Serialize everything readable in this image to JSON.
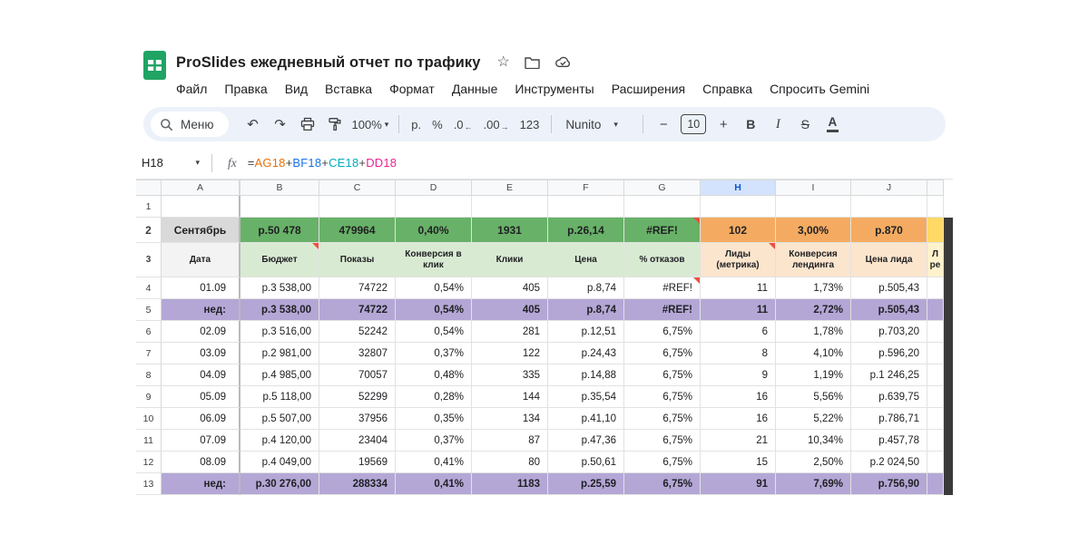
{
  "titlebar": {
    "title": "ProSlides ежедневный отчет по трафику"
  },
  "menubar": {
    "items": [
      "Файл",
      "Правка",
      "Вид",
      "Вставка",
      "Формат",
      "Данные",
      "Инструменты",
      "Расширения",
      "Справка",
      "Спросить Gemini"
    ]
  },
  "toolbar": {
    "menu_search_label": "Меню",
    "zoom_value": "100%",
    "currency_label": "р.",
    "percent_label": "%",
    "decimal_decrease": ".0",
    "decimal_increase": ".00",
    "more_formats": "123",
    "font_name": "Nunito",
    "font_size": "10",
    "bold_label": "B",
    "italic_label": "I",
    "strikethrough_label": "S",
    "text_color_label": "A"
  },
  "icons": {
    "caret_down": "▾",
    "undo": "↶",
    "redo": "↷",
    "star": "☆",
    "arrow_left": "←",
    "arrow_right": "→",
    "minus": "−",
    "plus": "+"
  },
  "formula_bar": {
    "name_box": "H18",
    "fx_label": "fx",
    "formula": [
      {
        "t": "=",
        "c": "#444746"
      },
      {
        "t": "AG18",
        "c": "#e8710a"
      },
      {
        "t": "+",
        "c": "#444746"
      },
      {
        "t": "BF18",
        "c": "#1a73e8"
      },
      {
        "t": "+",
        "c": "#444746"
      },
      {
        "t": "CE18",
        "c": "#00acc1"
      },
      {
        "t": "+",
        "c": "#444746"
      },
      {
        "t": "DD18",
        "c": "#e52592"
      }
    ]
  },
  "colors": {
    "summary_green": "#68b168",
    "header_green": "#d9ead3",
    "summary_orange": "#f4ab61",
    "header_orange": "#fce5cd",
    "summary_yellow": "#ffd966",
    "header_yellow": "#fff2cc",
    "week_purple": "#b4a7d6",
    "month_cell": "#d9d9d9",
    "date_cell": "#f3f3f3",
    "selected_col_bg": "#d3e3fd",
    "selected_col_text": "#0b57d0",
    "note_red": "#eb5043",
    "logo_green": "#20a464"
  },
  "grid": {
    "columns": [
      "A",
      "B",
      "C",
      "D",
      "E",
      "F",
      "G",
      "H",
      "I",
      "J"
    ],
    "selected_column": "H",
    "partial_header": "Л ре",
    "rows": [
      {
        "num": "1",
        "type": "empty",
        "cells": [
          "",
          "",
          "",
          "",
          "",
          "",
          "",
          "",
          "",
          ""
        ]
      },
      {
        "num": "2",
        "type": "summary",
        "cells": [
          "Сентябрь",
          "р.50 478",
          "479964",
          "0,40%",
          "1931",
          "р.26,14",
          "#REF!",
          "102",
          "3,00%",
          "р.870"
        ],
        "notes": [
          6
        ]
      },
      {
        "num": "3",
        "type": "colhead",
        "cells": [
          "Дата",
          "Бюджет",
          "Показы",
          "Конверсия в клик",
          "Клики",
          "Цена",
          "% отказов",
          "Лиды (метрика)",
          "Конверсия лендинга",
          "Цена лида"
        ],
        "notes": [
          1,
          7
        ]
      },
      {
        "num": "4",
        "type": "data",
        "cells": [
          "01.09",
          "р.3 538,00",
          "74722",
          "0,54%",
          "405",
          "р.8,74",
          "#REF!",
          "11",
          "1,73%",
          "р.505,43"
        ],
        "notes": [
          6
        ]
      },
      {
        "num": "5",
        "type": "week",
        "cells": [
          "нед:",
          "р.3 538,00",
          "74722",
          "0,54%",
          "405",
          "р.8,74",
          "#REF!",
          "11",
          "2,72%",
          "р.505,43"
        ]
      },
      {
        "num": "6",
        "type": "data",
        "cells": [
          "02.09",
          "р.3 516,00",
          "52242",
          "0,54%",
          "281",
          "р.12,51",
          "6,75%",
          "6",
          "1,78%",
          "р.703,20"
        ]
      },
      {
        "num": "7",
        "type": "data",
        "cells": [
          "03.09",
          "р.2 981,00",
          "32807",
          "0,37%",
          "122",
          "р.24,43",
          "6,75%",
          "8",
          "4,10%",
          "р.596,20"
        ]
      },
      {
        "num": "8",
        "type": "data",
        "cells": [
          "04.09",
          "р.4 985,00",
          "70057",
          "0,48%",
          "335",
          "р.14,88",
          "6,75%",
          "9",
          "1,19%",
          "р.1 246,25"
        ]
      },
      {
        "num": "9",
        "type": "data",
        "cells": [
          "05.09",
          "р.5 118,00",
          "52299",
          "0,28%",
          "144",
          "р.35,54",
          "6,75%",
          "16",
          "5,56%",
          "р.639,75"
        ]
      },
      {
        "num": "10",
        "type": "data",
        "cells": [
          "06.09",
          "р.5 507,00",
          "37956",
          "0,35%",
          "134",
          "р.41,10",
          "6,75%",
          "16",
          "5,22%",
          "р.786,71"
        ]
      },
      {
        "num": "11",
        "type": "data",
        "cells": [
          "07.09",
          "р.4 120,00",
          "23404",
          "0,37%",
          "87",
          "р.47,36",
          "6,75%",
          "21",
          "10,34%",
          "р.457,78"
        ]
      },
      {
        "num": "12",
        "type": "data",
        "cells": [
          "08.09",
          "р.4 049,00",
          "19569",
          "0,41%",
          "80",
          "р.50,61",
          "6,75%",
          "15",
          "2,50%",
          "р.2 024,50"
        ]
      },
      {
        "num": "13",
        "type": "week",
        "cells": [
          "нед:",
          "р.30 276,00",
          "288334",
          "0,41%",
          "1183",
          "р.25,59",
          "6,75%",
          "91",
          "7,69%",
          "р.756,90"
        ]
      }
    ]
  }
}
